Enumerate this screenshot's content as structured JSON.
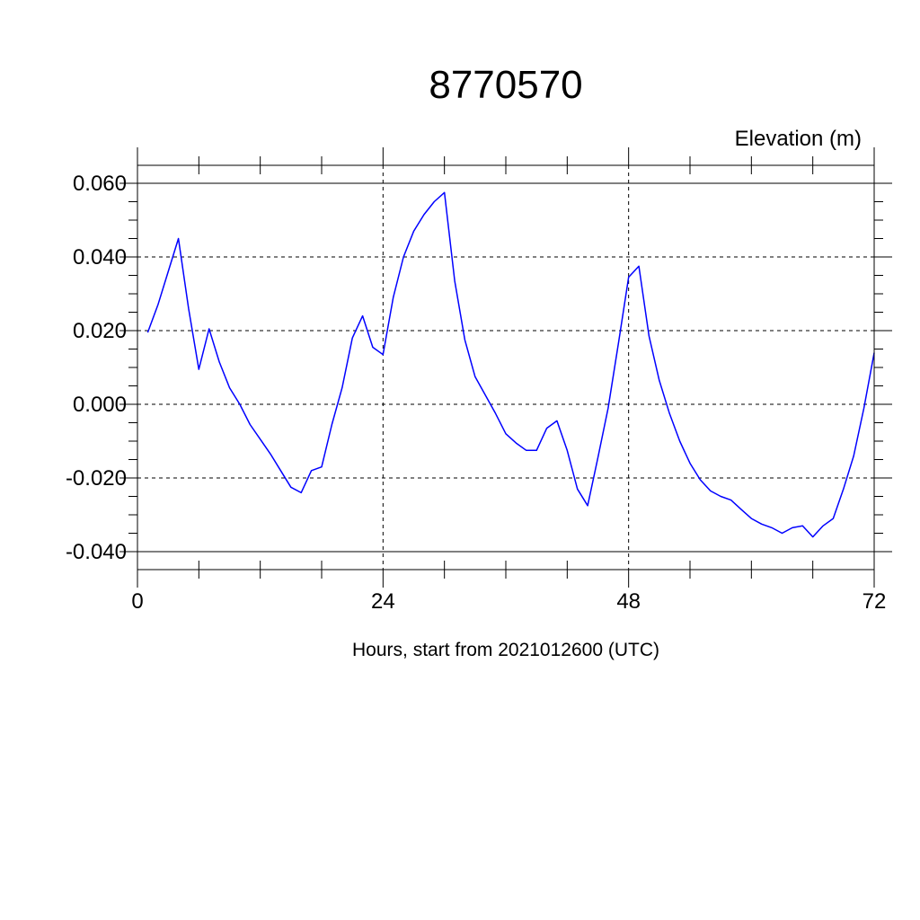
{
  "chart_data": {
    "type": "line",
    "title": "8770570",
    "ylabel": "Elevation (m)",
    "xlabel": "Hours, start from 2021012600 (UTC)",
    "xlim": [
      0,
      72
    ],
    "ylim": [
      -0.04,
      0.06
    ],
    "x_ticks": [
      0,
      24,
      48,
      72
    ],
    "x_tick_labels": [
      "0",
      "24",
      "48",
      "72"
    ],
    "y_ticks": [
      -0.04,
      -0.02,
      0.0,
      0.02,
      0.04,
      0.06
    ],
    "y_tick_labels": [
      "-0.040",
      "-0.020",
      "0.000",
      "0.020",
      "0.040",
      "0.060"
    ],
    "grid": true,
    "series_color": "#0000ff",
    "series": [
      {
        "x": [
          1,
          2,
          3,
          4,
          5,
          6,
          7,
          8,
          9,
          10,
          11,
          12,
          13,
          14,
          15,
          16,
          17,
          18,
          19,
          20,
          21,
          22,
          23,
          24,
          25,
          26,
          27,
          28,
          29,
          30,
          31,
          32,
          33,
          34,
          35,
          36,
          37,
          38,
          39,
          40,
          41,
          42,
          43,
          44,
          45,
          46,
          47,
          48,
          49,
          50,
          51,
          52,
          53,
          54,
          55,
          56,
          57,
          58,
          59,
          60,
          61,
          62,
          63,
          64,
          65,
          66,
          67,
          68,
          69,
          70,
          71,
          72
        ],
        "values": [
          0.0195,
          0.027,
          0.036,
          0.045,
          0.026,
          0.0095,
          0.0205,
          0.0115,
          0.0045,
          0.0,
          -0.0055,
          -0.0095,
          -0.0135,
          -0.018,
          -0.0225,
          -0.024,
          -0.018,
          -0.017,
          -0.0055,
          0.0045,
          0.018,
          0.024,
          0.0155,
          0.0135,
          0.029,
          0.04,
          0.047,
          0.0515,
          0.055,
          0.0575,
          0.0335,
          0.0175,
          0.0075,
          0.0025,
          -0.0025,
          -0.008,
          -0.0105,
          -0.0125,
          -0.0125,
          -0.0065,
          -0.0045,
          -0.0125,
          -0.023,
          -0.0275,
          -0.0145,
          -0.001,
          0.0165,
          0.0345,
          0.0375,
          0.0185,
          0.0065,
          -0.0025,
          -0.01,
          -0.016,
          -0.0205,
          -0.0235,
          -0.025,
          -0.026,
          -0.0285,
          -0.031,
          -0.0325,
          -0.0335,
          -0.035,
          -0.0335,
          -0.033,
          -0.036,
          -0.033,
          -0.031,
          -0.023,
          -0.014,
          -0.001,
          0.014
        ]
      }
    ]
  }
}
